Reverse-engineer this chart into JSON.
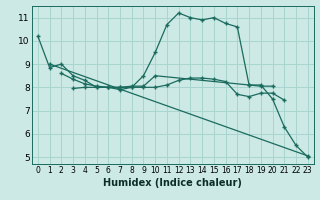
{
  "xlabel": "Humidex (Indice chaleur)",
  "xlim": [
    -0.5,
    23.5
  ],
  "ylim": [
    4.7,
    11.5
  ],
  "yticks": [
    5,
    6,
    7,
    8,
    9,
    10,
    11
  ],
  "xtick_labels": [
    "0",
    "1",
    "2",
    "3",
    "4",
    "5",
    "6",
    "7",
    "8",
    "9",
    "10",
    "11",
    "12",
    "13",
    "14",
    "15",
    "16",
    "17",
    "18",
    "19",
    "20",
    "21",
    "22",
    "23"
  ],
  "bg_color": "#cce9e5",
  "line_color": "#1a6b5e",
  "grid_color": "#a8d5cf",
  "series1_x": [
    0,
    1,
    2,
    3,
    4,
    5,
    6,
    7,
    8,
    9,
    10,
    11,
    12,
    13,
    14,
    15,
    16,
    17,
    18,
    19,
    20,
    21,
    22,
    23
  ],
  "series1_y": [
    10.2,
    8.85,
    9.0,
    8.5,
    8.3,
    8.0,
    8.0,
    7.9,
    8.0,
    8.5,
    9.5,
    10.7,
    11.2,
    11.0,
    10.9,
    11.0,
    10.75,
    10.6,
    8.1,
    8.1,
    7.5,
    6.3,
    5.5,
    5.0
  ],
  "series2_x": [
    2,
    3,
    4,
    5,
    6,
    7,
    8,
    9,
    10,
    18,
    19,
    20
  ],
  "series2_y": [
    8.6,
    8.35,
    8.15,
    8.05,
    8.0,
    8.0,
    8.05,
    8.05,
    8.5,
    8.1,
    8.05,
    8.05
  ],
  "series3_x": [
    3,
    4,
    5,
    6,
    7,
    8,
    9,
    10,
    11,
    12,
    13,
    14,
    15,
    16,
    17,
    18,
    19,
    20,
    21
  ],
  "series3_y": [
    7.95,
    8.0,
    8.0,
    8.0,
    8.0,
    8.0,
    8.0,
    8.0,
    8.1,
    8.3,
    8.4,
    8.4,
    8.35,
    8.25,
    7.7,
    7.6,
    7.75,
    7.75,
    7.45
  ],
  "series4_x": [
    1,
    23
  ],
  "series4_y": [
    9.0,
    5.05
  ],
  "figsize": [
    3.2,
    2.0
  ],
  "dpi": 100
}
